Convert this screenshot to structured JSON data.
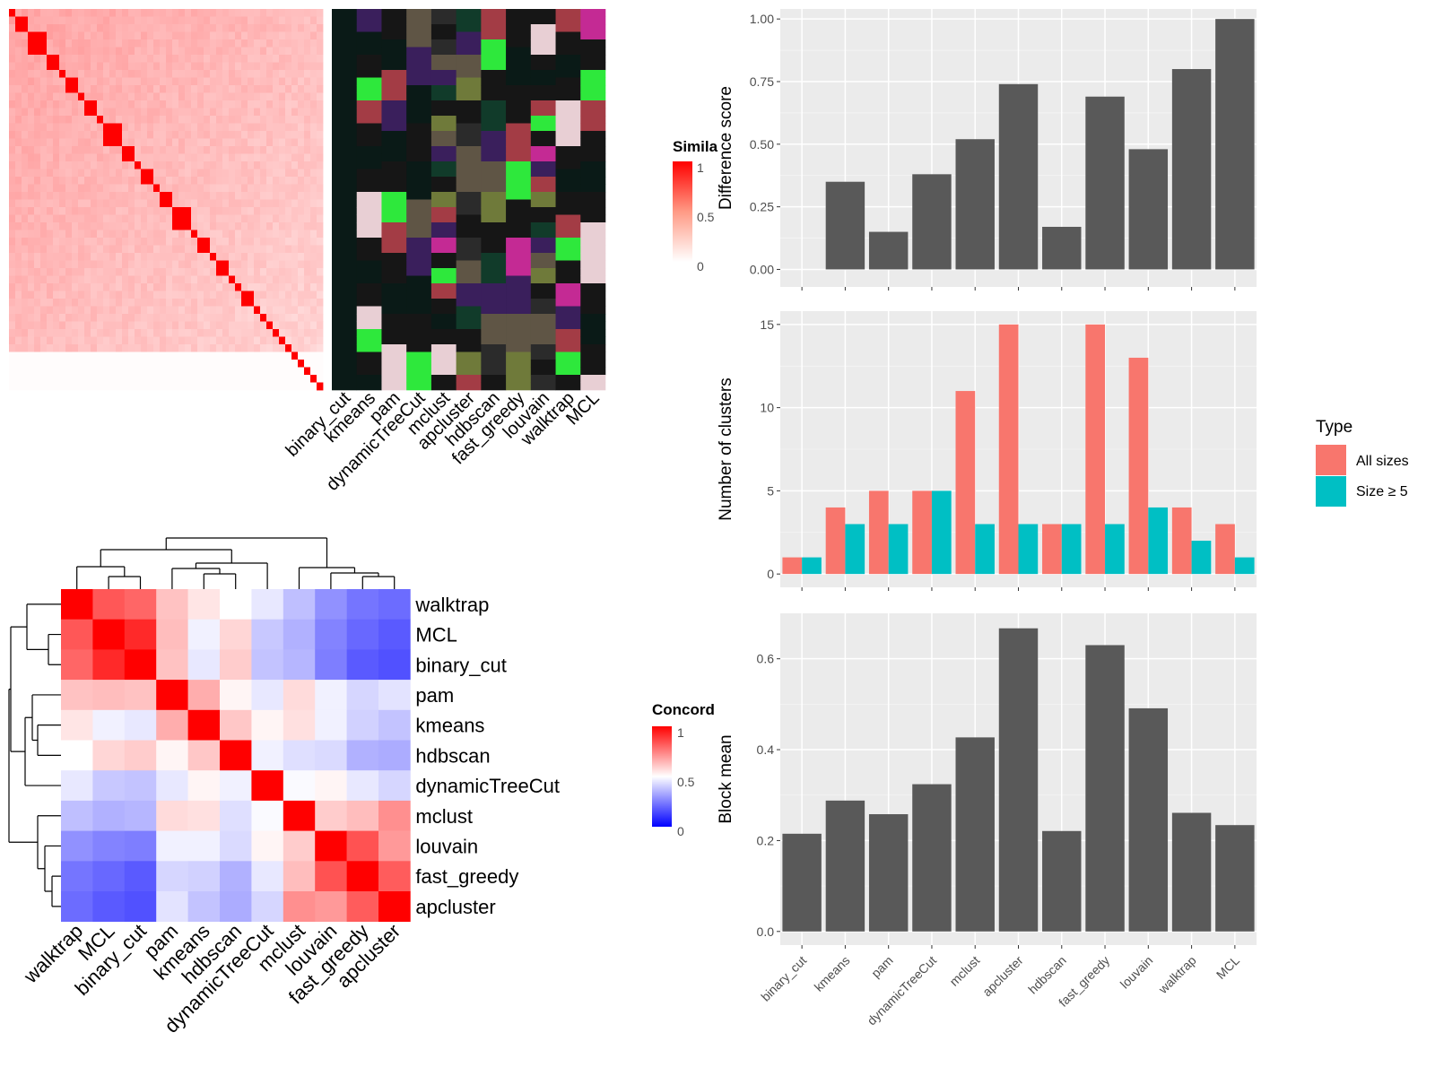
{
  "methods": [
    "binary_cut",
    "kmeans",
    "pam",
    "dynamicTreeCut",
    "mclust",
    "apcluster",
    "hdbscan",
    "fast_greedy",
    "louvain",
    "walktrap",
    "MCL"
  ],
  "similarity_legend": {
    "title": "Simila",
    "ticks": [
      "1",
      "0.5",
      "0"
    ]
  },
  "concordance_legend": {
    "title": "Concord",
    "ticks": [
      "1",
      "0.5",
      "0"
    ]
  },
  "type_legend": {
    "title": "Type",
    "entries": [
      "All sizes",
      "Size ≥ 5"
    ]
  },
  "colors": {
    "all_sizes": "#F8766D",
    "size5": "#00BFC4",
    "bar": "#595959",
    "panel_bg": "#EBEBEB"
  },
  "chart_data": [
    {
      "type": "heatmap",
      "ylabel_order": [
        "walktrap",
        "MCL",
        "binary_cut",
        "pam",
        "kmeans",
        "hdbscan",
        "dynamicTreeCut",
        "mclust",
        "louvain",
        "fast_greedy",
        "apcluster"
      ],
      "xlabel_order": [
        "walktrap",
        "MCL",
        "binary_cut",
        "pam",
        "kmeans",
        "hdbscan",
        "dynamicTreeCut",
        "mclust",
        "louvain",
        "fast_greedy",
        "apcluster"
      ],
      "values": [
        [
          1.0,
          0.83,
          0.8,
          0.62,
          0.55,
          0.5,
          0.45,
          0.36,
          0.26,
          0.2,
          0.18
        ],
        [
          0.83,
          1.0,
          0.92,
          0.63,
          0.47,
          0.58,
          0.38,
          0.33,
          0.23,
          0.17,
          0.14
        ],
        [
          0.8,
          0.92,
          1.0,
          0.62,
          0.45,
          0.6,
          0.37,
          0.34,
          0.22,
          0.14,
          0.12
        ],
        [
          0.62,
          0.63,
          0.62,
          1.0,
          0.66,
          0.52,
          0.45,
          0.57,
          0.47,
          0.41,
          0.44
        ],
        [
          0.55,
          0.47,
          0.45,
          0.66,
          1.0,
          0.61,
          0.52,
          0.56,
          0.47,
          0.4,
          0.37
        ],
        [
          0.5,
          0.58,
          0.6,
          0.52,
          0.61,
          1.0,
          0.47,
          0.43,
          0.42,
          0.33,
          0.32
        ],
        [
          0.45,
          0.38,
          0.37,
          0.45,
          0.52,
          0.47,
          1.0,
          0.49,
          0.52,
          0.45,
          0.41
        ],
        [
          0.36,
          0.33,
          0.34,
          0.57,
          0.56,
          0.43,
          0.49,
          1.0,
          0.6,
          0.63,
          0.72
        ],
        [
          0.26,
          0.23,
          0.22,
          0.47,
          0.47,
          0.42,
          0.52,
          0.6,
          1.0,
          0.84,
          0.7
        ],
        [
          0.2,
          0.17,
          0.14,
          0.41,
          0.4,
          0.33,
          0.45,
          0.63,
          0.84,
          1.0,
          0.82
        ],
        [
          0.18,
          0.14,
          0.12,
          0.44,
          0.37,
          0.32,
          0.41,
          0.72,
          0.7,
          0.82,
          1.0
        ]
      ],
      "legend_title": "Concord"
    },
    {
      "type": "bar",
      "categories": [
        "binary_cut",
        "kmeans",
        "pam",
        "dynamicTreeCut",
        "mclust",
        "apcluster",
        "hdbscan",
        "fast_greedy",
        "louvain",
        "walktrap",
        "MCL"
      ],
      "values": [
        0.0,
        0.35,
        0.15,
        0.38,
        0.52,
        0.74,
        0.17,
        0.69,
        0.48,
        0.8,
        1.0
      ],
      "ylabel": "Difference score",
      "ylim": [
        -0.07,
        1.04
      ],
      "yticks": [
        "0.00",
        "0.25",
        "0.50",
        "0.75",
        "1.00"
      ]
    },
    {
      "type": "bar",
      "categories": [
        "binary_cut",
        "kmeans",
        "pam",
        "dynamicTreeCut",
        "mclust",
        "apcluster",
        "hdbscan",
        "fast_greedy",
        "louvain",
        "walktrap",
        "MCL"
      ],
      "series": [
        {
          "name": "All sizes",
          "values": [
            1,
            4,
            5,
            5,
            11,
            15,
            3,
            15,
            13,
            4,
            3
          ]
        },
        {
          "name": "Size ≥ 5",
          "values": [
            1,
            3,
            3,
            5,
            3,
            3,
            3,
            3,
            4,
            2,
            1
          ]
        }
      ],
      "ylabel": "Number of clusters",
      "ylim": [
        -0.8,
        15.8
      ],
      "yticks": [
        "0",
        "5",
        "10",
        "15"
      ]
    },
    {
      "type": "bar",
      "categories": [
        "binary_cut",
        "kmeans",
        "pam",
        "dynamicTreeCut",
        "mclust",
        "apcluster",
        "hdbscan",
        "fast_greedy",
        "louvain",
        "walktrap",
        "MCL"
      ],
      "values": [
        0.215,
        0.288,
        0.258,
        0.324,
        0.427,
        0.667,
        0.221,
        0.63,
        0.491,
        0.261,
        0.234
      ],
      "ylabel": "Block mean",
      "ylim": [
        -0.03,
        0.7
      ],
      "yticks": [
        "0.0",
        "0.2",
        "0.4",
        "0.6"
      ]
    }
  ]
}
